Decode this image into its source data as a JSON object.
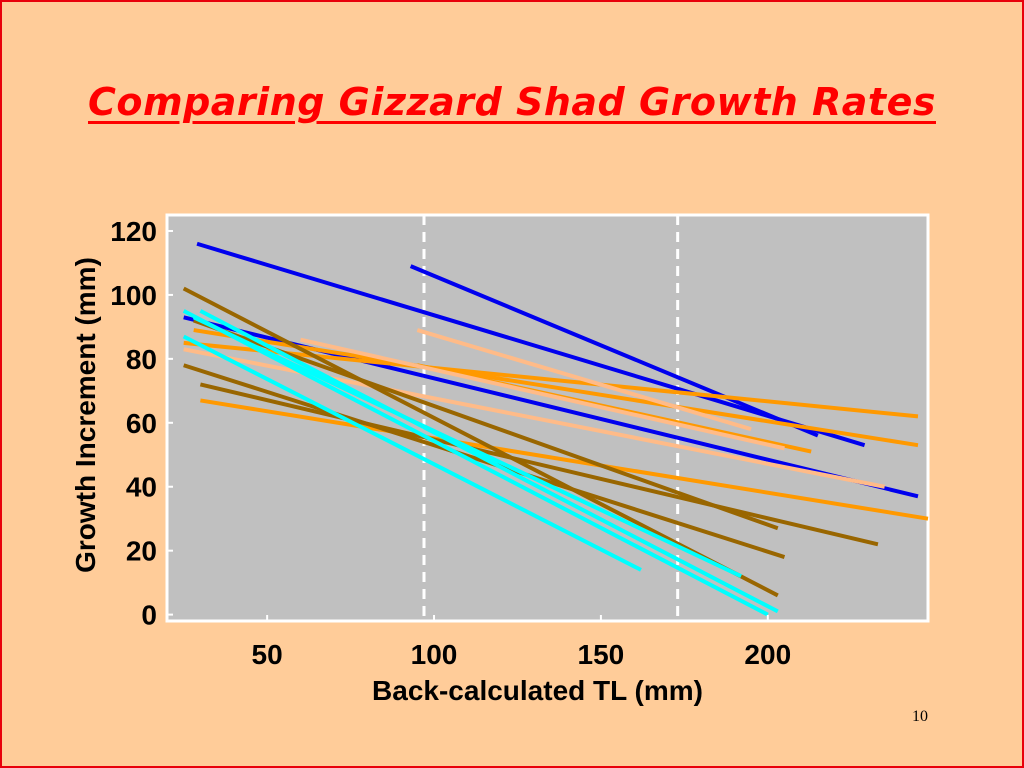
{
  "slide": {
    "title": "Comparing Gizzard Shad Growth Rates",
    "page_number": "10",
    "background_color": "#FFCC99",
    "border_color": "#E8000B",
    "title_color": "#FF0000"
  },
  "chart_data": {
    "type": "line",
    "title": "",
    "xlabel": "Back-calculated TL (mm)",
    "ylabel": "Growth Increment (mm)",
    "xlim": [
      20,
      248
    ],
    "ylim": [
      -2,
      125
    ],
    "x_ticks": [
      50,
      100,
      150,
      200
    ],
    "y_ticks": [
      0,
      20,
      40,
      60,
      80,
      100,
      120
    ],
    "plot_background": "#C0C0C0",
    "grid": false,
    "legend": "none",
    "vertical_reference_lines": [
      {
        "x": 97,
        "style": "dashed",
        "color": "#FFFFFF"
      },
      {
        "x": 173,
        "style": "dashed",
        "color": "#FFFFFF"
      }
    ],
    "series": [
      {
        "color": "#0000EE",
        "points": [
          [
            29,
            116
          ],
          [
            229,
            53
          ]
        ]
      },
      {
        "color": "#0000EE",
        "points": [
          [
            93,
            109
          ],
          [
            215,
            56
          ]
        ]
      },
      {
        "color": "#0000EE",
        "points": [
          [
            25,
            93
          ],
          [
            245,
            37
          ]
        ]
      },
      {
        "color": "#FF9900",
        "points": [
          [
            25,
            85
          ],
          [
            245,
            62
          ]
        ]
      },
      {
        "color": "#FF9900",
        "points": [
          [
            30,
            67
          ],
          [
            248,
            30
          ]
        ]
      },
      {
        "color": "#FF9900",
        "points": [
          [
            28,
            89
          ],
          [
            245,
            53
          ]
        ]
      },
      {
        "color": "#FF9900",
        "points": [
          [
            95,
            78
          ],
          [
            213,
            51
          ]
        ]
      },
      {
        "color": "#FFBB88",
        "points": [
          [
            95,
            89
          ],
          [
            195,
            58
          ]
        ]
      },
      {
        "color": "#FFBB88",
        "points": [
          [
            25,
            83
          ],
          [
            235,
            40
          ]
        ]
      },
      {
        "color": "#FFBB88",
        "points": [
          [
            60,
            86
          ],
          [
            205,
            52
          ]
        ]
      },
      {
        "color": "#996600",
        "points": [
          [
            25,
            102
          ],
          [
            203,
            6
          ]
        ]
      },
      {
        "color": "#996600",
        "points": [
          [
            25,
            78
          ],
          [
            205,
            18
          ]
        ]
      },
      {
        "color": "#996600",
        "points": [
          [
            30,
            72
          ],
          [
            233,
            22
          ]
        ]
      },
      {
        "color": "#996600",
        "points": [
          [
            28,
            92
          ],
          [
            203,
            27
          ]
        ]
      },
      {
        "color": "#00FFFF",
        "points": [
          [
            25,
            95
          ],
          [
            200,
            0
          ]
        ]
      },
      {
        "color": "#00FFFF",
        "points": [
          [
            25,
            87
          ],
          [
            162,
            14
          ]
        ]
      },
      {
        "color": "#00FFFF",
        "points": [
          [
            30,
            95
          ],
          [
            203,
            1
          ]
        ]
      },
      {
        "color": "#00FFFF",
        "points": [
          [
            28,
            93
          ],
          [
            192,
            12
          ]
        ]
      }
    ]
  }
}
